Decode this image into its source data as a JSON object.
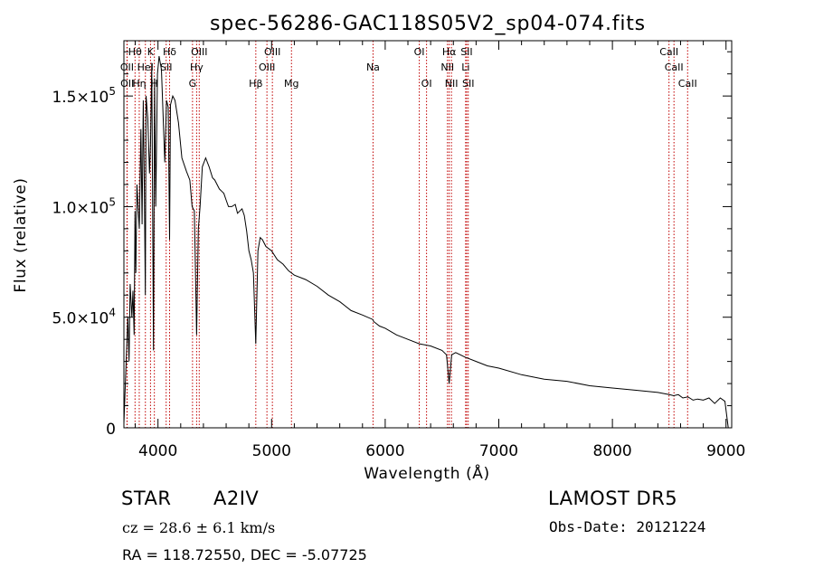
{
  "chart_data": {
    "type": "line",
    "title": "spec-56286-GAC118S05V2_sp04-074.fits",
    "xlabel": "Wavelength (Å)",
    "ylabel": "Flux (relative)",
    "xlim": [
      3700,
      9050
    ],
    "ylim": [
      0,
      175000
    ],
    "grid": false,
    "x_ticks": [
      {
        "value": 4000,
        "label": "4000"
      },
      {
        "value": 5000,
        "label": "5000"
      },
      {
        "value": 6000,
        "label": "6000"
      },
      {
        "value": 7000,
        "label": "7000"
      },
      {
        "value": 8000,
        "label": "8000"
      },
      {
        "value": 9000,
        "label": "9000"
      }
    ],
    "y_ticks": [
      {
        "value": 0,
        "mantissa": "0",
        "exponent": ""
      },
      {
        "value": 50000,
        "mantissa": "5.0×10",
        "exponent": "4"
      },
      {
        "value": 100000,
        "mantissa": "1.0×10",
        "exponent": "5"
      },
      {
        "value": 150000,
        "mantissa": "1.5×10",
        "exponent": "5"
      }
    ],
    "spectrum": {
      "name": "",
      "x": [
        3700,
        3720,
        3735,
        3745,
        3755,
        3770,
        3780,
        3790,
        3798,
        3805,
        3815,
        3835,
        3850,
        3860,
        3870,
        3880,
        3889,
        3895,
        3910,
        3925,
        3934,
        3945,
        3960,
        3970,
        3980,
        3995,
        4010,
        4030,
        4060,
        4075,
        4090,
        4102,
        4110,
        4130,
        4150,
        4180,
        4210,
        4250,
        4280,
        4300,
        4320,
        4340,
        4355,
        4370,
        4390,
        4420,
        4450,
        4480,
        4500,
        4520,
        4540,
        4560,
        4580,
        4600,
        4620,
        4650,
        4680,
        4700,
        4720,
        4740,
        4760,
        4780,
        4800,
        4820,
        4840,
        4861,
        4880,
        4900,
        4920,
        4950,
        5000,
        5050,
        5100,
        5150,
        5200,
        5300,
        5400,
        5500,
        5600,
        5700,
        5800,
        5890,
        5900,
        5950,
        6000,
        6100,
        6200,
        6300,
        6400,
        6500,
        6540,
        6563,
        6585,
        6620,
        6700,
        6800,
        6900,
        7000,
        7200,
        7400,
        7600,
        7800,
        8000,
        8200,
        8400,
        8500,
        8540,
        8580,
        8620,
        8665,
        8710,
        8750,
        8800,
        8850,
        8900,
        8950,
        8990,
        9020
      ],
      "y": [
        2000,
        30000,
        50000,
        30000,
        65000,
        50000,
        62000,
        42000,
        98000,
        70000,
        110000,
        90000,
        135000,
        92000,
        148000,
        108000,
        60000,
        150000,
        140000,
        115000,
        128000,
        165000,
        35000,
        158000,
        100000,
        160000,
        168000,
        162000,
        120000,
        148000,
        145000,
        85000,
        146000,
        150000,
        148000,
        138000,
        122000,
        116000,
        112000,
        100000,
        98000,
        42000,
        90000,
        100000,
        118000,
        122000,
        118000,
        113000,
        112000,
        110000,
        108000,
        107000,
        106000,
        103000,
        100000,
        100000,
        101000,
        97000,
        98000,
        99000,
        96000,
        89000,
        80000,
        76000,
        70000,
        38000,
        80000,
        86000,
        85000,
        82000,
        80000,
        76000,
        74000,
        71000,
        69000,
        67000,
        64000,
        60000,
        57000,
        53000,
        51000,
        49000,
        48000,
        46000,
        45000,
        42000,
        40000,
        38000,
        37000,
        35000,
        33000,
        20000,
        33000,
        34000,
        32000,
        30000,
        28000,
        27000,
        24000,
        22000,
        21000,
        19000,
        18000,
        17000,
        16000,
        15000,
        14500,
        15000,
        13500,
        14000,
        12500,
        13000,
        12500,
        13500,
        11000,
        13500,
        12000,
        0
      ]
    },
    "line_markers": [
      {
        "label": "Hθ",
        "x": 3798,
        "row": 0
      },
      {
        "label": "K",
        "x": 3934,
        "row": 0
      },
      {
        "label": "Hδ",
        "x": 4102,
        "row": 0
      },
      {
        "label": "OIII",
        "x": 4363,
        "row": 0
      },
      {
        "label": "OIII",
        "x": 5007,
        "row": 0
      },
      {
        "label": "OI",
        "x": 6300,
        "row": 0
      },
      {
        "label": "Hα",
        "x": 6563,
        "row": 0
      },
      {
        "label": "SII",
        "x": 6717,
        "row": 0
      },
      {
        "label": "CaII",
        "x": 8498,
        "row": 0
      },
      {
        "label": "OII",
        "x": 3727,
        "row": 1
      },
      {
        "label": "HeI",
        "x": 3889,
        "row": 1
      },
      {
        "label": "SII",
        "x": 4072,
        "row": 1
      },
      {
        "label": "Hγ",
        "x": 4340,
        "row": 1
      },
      {
        "label": "OIII",
        "x": 4959,
        "row": 1
      },
      {
        "label": "Na",
        "x": 5893,
        "row": 1
      },
      {
        "label": "NII",
        "x": 6548,
        "row": 1
      },
      {
        "label": "Li",
        "x": 6708,
        "row": 1
      },
      {
        "label": "CaII",
        "x": 8542,
        "row": 1
      },
      {
        "label": "OII",
        "x": 3729,
        "row": 2
      },
      {
        "label": "Hη",
        "x": 3835,
        "row": 2
      },
      {
        "label": "H",
        "x": 3968,
        "row": 2
      },
      {
        "label": "G",
        "x": 4304,
        "row": 2
      },
      {
        "label": "Hβ",
        "x": 4861,
        "row": 2
      },
      {
        "label": "Mg",
        "x": 5175,
        "row": 2
      },
      {
        "label": "OI",
        "x": 6364,
        "row": 2
      },
      {
        "label": "NII",
        "x": 6583,
        "row": 2
      },
      {
        "label": "SII",
        "x": 6731,
        "row": 2
      },
      {
        "label": "CaII",
        "x": 8662,
        "row": 2
      }
    ],
    "marker_color": "#c00000",
    "line_color": "#000000"
  },
  "info": {
    "object_class": "STAR",
    "subclass": "A2IV",
    "survey": "LAMOST DR5",
    "cz_line": "cz = 28.6 ± 6.1 km/s",
    "obs_date": "Obs-Date: 20121224",
    "coords": "RA = 118.72550, DEC =  -5.07725"
  }
}
